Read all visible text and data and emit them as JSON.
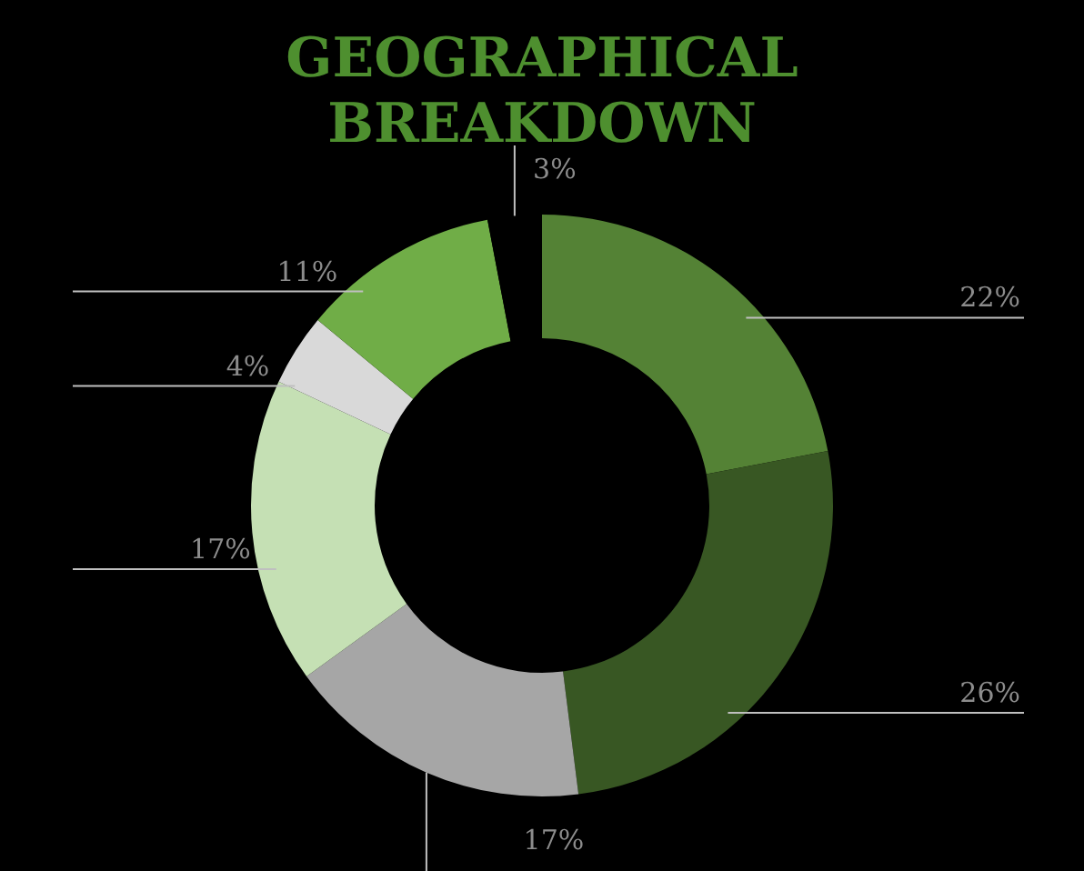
{
  "chart_data": {
    "type": "donut",
    "title": "GEOGRAPHICAL\nBREAKDOWN",
    "categories": [
      null,
      null,
      null,
      null,
      null,
      null,
      null
    ],
    "values": [
      22,
      26,
      17,
      17,
      4,
      11,
      3
    ],
    "colors": [
      "#548235",
      "#385723",
      "#a6a6a6",
      "#c5e0b4",
      "#d9d9d9",
      "#70ad47",
      "#000000"
    ],
    "value_labels": [
      "22%",
      "26%",
      "17%",
      "17%",
      "4%",
      "11%",
      "3%"
    ]
  }
}
